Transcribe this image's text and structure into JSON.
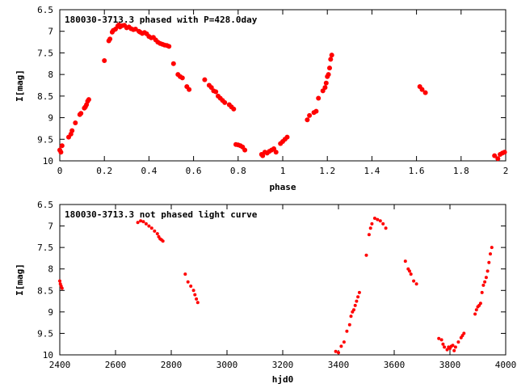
{
  "colors": {
    "points": "#ff0000",
    "axes": "#000000",
    "background": "#ffffff"
  },
  "chart_data": [
    {
      "type": "scatter",
      "title": "180030-3713.3 phased with P=428.0day",
      "xlabel": "phase",
      "ylabel": "I[mag]",
      "xlim": [
        0,
        2
      ],
      "ylim": [
        6.5,
        10
      ],
      "y_inverted": true,
      "grid": false,
      "x_ticks": [
        "0",
        "0.2",
        "0.4",
        "0.6",
        "0.8",
        "1",
        "1.2",
        "1.4",
        "1.6",
        "1.8",
        "2"
      ],
      "y_ticks": [
        "6.5",
        "7",
        "7.5",
        "8",
        "8.5",
        "9",
        "9.5",
        "10"
      ],
      "series": [
        {
          "points": [
            [
              0.0,
              9.75
            ],
            [
              0.005,
              9.8
            ],
            [
              0.01,
              9.65
            ],
            [
              0.04,
              9.45
            ],
            [
              0.05,
              9.38
            ],
            [
              0.055,
              9.3
            ],
            [
              0.07,
              9.12
            ],
            [
              0.09,
              8.93
            ],
            [
              0.095,
              8.9
            ],
            [
              0.11,
              8.78
            ],
            [
              0.115,
              8.75
            ],
            [
              0.12,
              8.7
            ],
            [
              0.125,
              8.62
            ],
            [
              0.13,
              8.58
            ],
            [
              0.2,
              7.68
            ],
            [
              0.22,
              7.22
            ],
            [
              0.225,
              7.18
            ],
            [
              0.235,
              7.02
            ],
            [
              0.24,
              6.98
            ],
            [
              0.25,
              6.95
            ],
            [
              0.26,
              6.88
            ],
            [
              0.265,
              6.85
            ],
            [
              0.27,
              6.9
            ],
            [
              0.28,
              6.87
            ],
            [
              0.29,
              6.86
            ],
            [
              0.3,
              6.92
            ],
            [
              0.31,
              6.9
            ],
            [
              0.32,
              6.94
            ],
            [
              0.33,
              6.96
            ],
            [
              0.34,
              6.95
            ],
            [
              0.355,
              7.0
            ],
            [
              0.36,
              7.02
            ],
            [
              0.37,
              7.05
            ],
            [
              0.38,
              7.03
            ],
            [
              0.39,
              7.06
            ],
            [
              0.4,
              7.12
            ],
            [
              0.41,
              7.15
            ],
            [
              0.42,
              7.14
            ],
            [
              0.43,
              7.2
            ],
            [
              0.44,
              7.25
            ],
            [
              0.45,
              7.28
            ],
            [
              0.46,
              7.3
            ],
            [
              0.47,
              7.32
            ],
            [
              0.48,
              7.33
            ],
            [
              0.49,
              7.35
            ],
            [
              0.51,
              7.75
            ],
            [
              0.53,
              8.0
            ],
            [
              0.54,
              8.05
            ],
            [
              0.55,
              8.08
            ],
            [
              0.57,
              8.28
            ],
            [
              0.58,
              8.35
            ],
            [
              0.65,
              8.12
            ],
            [
              0.67,
              8.25
            ],
            [
              0.68,
              8.3
            ],
            [
              0.69,
              8.38
            ],
            [
              0.7,
              8.4
            ],
            [
              0.71,
              8.5
            ],
            [
              0.72,
              8.55
            ],
            [
              0.73,
              8.6
            ],
            [
              0.74,
              8.65
            ],
            [
              0.76,
              8.7
            ],
            [
              0.77,
              8.75
            ],
            [
              0.78,
              8.8
            ],
            [
              0.79,
              9.62
            ],
            [
              0.8,
              9.63
            ],
            [
              0.81,
              9.65
            ],
            [
              0.82,
              9.68
            ],
            [
              0.83,
              9.75
            ],
            [
              0.905,
              9.85
            ],
            [
              0.91,
              9.88
            ],
            [
              0.92,
              9.8
            ],
            [
              0.93,
              9.82
            ],
            [
              0.94,
              9.78
            ],
            [
              0.95,
              9.75
            ],
            [
              0.96,
              9.72
            ],
            [
              0.97,
              9.8
            ],
            [
              0.99,
              9.6
            ],
            [
              1.0,
              9.55
            ],
            [
              1.01,
              9.5
            ],
            [
              1.02,
              9.45
            ],
            [
              1.11,
              9.05
            ],
            [
              1.12,
              8.95
            ],
            [
              1.14,
              8.88
            ],
            [
              1.15,
              8.85
            ],
            [
              1.16,
              8.55
            ],
            [
              1.18,
              8.38
            ],
            [
              1.19,
              8.3
            ],
            [
              1.195,
              8.2
            ],
            [
              1.2,
              8.05
            ],
            [
              1.205,
              8.0
            ],
            [
              1.21,
              7.85
            ],
            [
              1.215,
              7.65
            ],
            [
              1.22,
              7.55
            ],
            [
              1.615,
              8.28
            ],
            [
              1.625,
              8.35
            ],
            [
              1.64,
              8.42
            ],
            [
              1.95,
              9.88
            ],
            [
              1.965,
              9.95
            ],
            [
              1.975,
              9.85
            ],
            [
              1.985,
              9.82
            ],
            [
              1.995,
              9.8
            ]
          ]
        }
      ]
    },
    {
      "type": "scatter",
      "title": "180030-3713.3 not phased light curve",
      "xlabel": "hjd0",
      "ylabel": "I[mag]",
      "xlim": [
        2400,
        4000
      ],
      "ylim": [
        6.5,
        10
      ],
      "y_inverted": true,
      "grid": false,
      "x_ticks": [
        "2400",
        "2600",
        "2800",
        "3000",
        "3200",
        "3400",
        "3600",
        "3800",
        "4000"
      ],
      "y_ticks": [
        "6.5",
        "7",
        "7.5",
        "8",
        "8.5",
        "9",
        "9.5",
        "10"
      ],
      "series": [
        {
          "points": [
            [
              2400,
              8.28
            ],
            [
              2402,
              8.35
            ],
            [
              2405,
              8.4
            ],
            [
              2408,
              8.45
            ],
            [
              2680,
              6.92
            ],
            [
              2690,
              6.88
            ],
            [
              2700,
              6.9
            ],
            [
              2710,
              6.95
            ],
            [
              2720,
              7.0
            ],
            [
              2730,
              7.05
            ],
            [
              2740,
              7.12
            ],
            [
              2750,
              7.18
            ],
            [
              2755,
              7.25
            ],
            [
              2760,
              7.3
            ],
            [
              2765,
              7.32
            ],
            [
              2770,
              7.35
            ],
            [
              2850,
              8.12
            ],
            [
              2860,
              8.3
            ],
            [
              2870,
              8.4
            ],
            [
              2880,
              8.5
            ],
            [
              2885,
              8.6
            ],
            [
              2890,
              8.7
            ],
            [
              2895,
              8.78
            ],
            [
              3390,
              9.92
            ],
            [
              3400,
              9.95
            ],
            [
              3410,
              9.8
            ],
            [
              3420,
              9.7
            ],
            [
              3430,
              9.45
            ],
            [
              3440,
              9.3
            ],
            [
              3445,
              9.1
            ],
            [
              3450,
              9.0
            ],
            [
              3455,
              8.95
            ],
            [
              3460,
              8.85
            ],
            [
              3465,
              8.75
            ],
            [
              3470,
              8.65
            ],
            [
              3475,
              8.55
            ],
            [
              3500,
              7.68
            ],
            [
              3510,
              7.2
            ],
            [
              3515,
              7.05
            ],
            [
              3520,
              6.95
            ],
            [
              3530,
              6.82
            ],
            [
              3540,
              6.85
            ],
            [
              3550,
              6.88
            ],
            [
              3560,
              6.95
            ],
            [
              3570,
              7.05
            ],
            [
              3640,
              7.82
            ],
            [
              3650,
              8.0
            ],
            [
              3655,
              8.05
            ],
            [
              3660,
              8.12
            ],
            [
              3670,
              8.28
            ],
            [
              3680,
              8.35
            ],
            [
              3760,
              9.62
            ],
            [
              3770,
              9.65
            ],
            [
              3775,
              9.75
            ],
            [
              3780,
              9.82
            ],
            [
              3790,
              9.88
            ],
            [
              3795,
              9.82
            ],
            [
              3800,
              9.85
            ],
            [
              3805,
              9.8
            ],
            [
              3810,
              9.78
            ],
            [
              3815,
              9.9
            ],
            [
              3820,
              9.82
            ],
            [
              3830,
              9.7
            ],
            [
              3840,
              9.6
            ],
            [
              3845,
              9.55
            ],
            [
              3850,
              9.5
            ],
            [
              3890,
              9.05
            ],
            [
              3895,
              8.95
            ],
            [
              3900,
              8.88
            ],
            [
              3905,
              8.85
            ],
            [
              3910,
              8.8
            ],
            [
              3915,
              8.55
            ],
            [
              3920,
              8.38
            ],
            [
              3925,
              8.3
            ],
            [
              3930,
              8.2
            ],
            [
              3935,
              8.05
            ],
            [
              3940,
              7.85
            ],
            [
              3945,
              7.65
            ],
            [
              3950,
              7.5
            ]
          ]
        }
      ]
    }
  ]
}
